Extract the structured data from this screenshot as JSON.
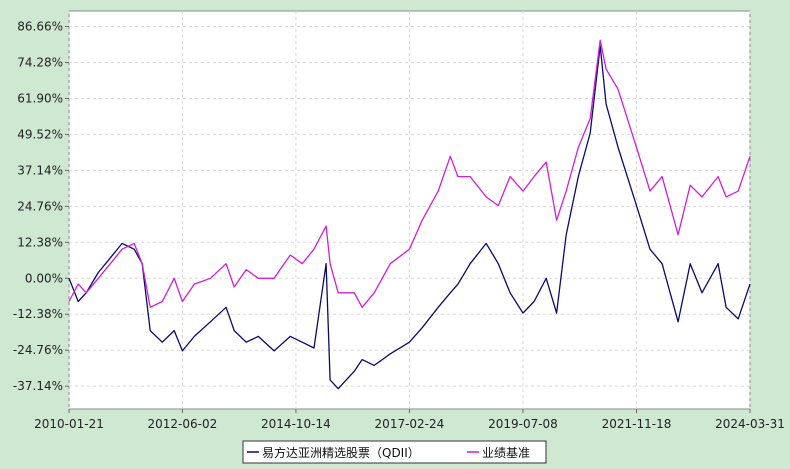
{
  "chart_data": {
    "type": "line",
    "title": "",
    "xlabel": "",
    "ylabel": "",
    "ylim": [
      -45.0,
      92.0
    ],
    "y_ticks": [
      86.66,
      74.28,
      61.9,
      49.52,
      37.14,
      24.76,
      12.38,
      0.0,
      -12.38,
      -24.76,
      -37.14
    ],
    "y_tick_labels": [
      "86.66%",
      "74.28%",
      "61.90%",
      "49.52%",
      "37.14%",
      "24.76%",
      "12.38%",
      "0.00%",
      "-12.38%",
      "-24.76%",
      "-37.14%"
    ],
    "x_start": "2010-01-21",
    "x_end": "2024-03-31",
    "x_ticks": [
      "2010-01-21",
      "2012-06-02",
      "2014-10-14",
      "2017-02-24",
      "2019-07-08",
      "2021-11-18",
      "2024-03-31"
    ],
    "grid": true,
    "legend_position": "bottom-center",
    "series": [
      {
        "name": "易方达亚洲精选股票（QDII）",
        "color": "#0a0a6e",
        "points": [
          [
            "2010-01-21",
            0
          ],
          [
            "2010-04-01",
            -8
          ],
          [
            "2010-06-01",
            -5
          ],
          [
            "2010-09-01",
            2
          ],
          [
            "2010-12-01",
            7
          ],
          [
            "2011-03-01",
            12
          ],
          [
            "2011-06-01",
            10
          ],
          [
            "2011-08-01",
            5
          ],
          [
            "2011-10-01",
            -18
          ],
          [
            "2012-01-01",
            -22
          ],
          [
            "2012-04-01",
            -18
          ],
          [
            "2012-06-02",
            -25
          ],
          [
            "2012-09-01",
            -20
          ],
          [
            "2013-01-01",
            -15
          ],
          [
            "2013-05-01",
            -10
          ],
          [
            "2013-07-01",
            -18
          ],
          [
            "2013-10-01",
            -22
          ],
          [
            "2014-01-01",
            -20
          ],
          [
            "2014-05-01",
            -25
          ],
          [
            "2014-09-01",
            -20
          ],
          [
            "2014-12-01",
            -22
          ],
          [
            "2015-03-01",
            -24
          ],
          [
            "2015-06-01",
            5
          ],
          [
            "2015-07-01",
            -35
          ],
          [
            "2015-09-01",
            -38
          ],
          [
            "2016-01-01",
            -32
          ],
          [
            "2016-03-01",
            -28
          ],
          [
            "2016-06-01",
            -30
          ],
          [
            "2016-10-01",
            -26
          ],
          [
            "2017-02-24",
            -22
          ],
          [
            "2017-06-01",
            -17
          ],
          [
            "2017-10-01",
            -10
          ],
          [
            "2018-01-01",
            -5
          ],
          [
            "2018-03-01",
            -2
          ],
          [
            "2018-06-01",
            5
          ],
          [
            "2018-10-01",
            12
          ],
          [
            "2019-01-01",
            5
          ],
          [
            "2019-04-01",
            -5
          ],
          [
            "2019-07-08",
            -12
          ],
          [
            "2019-10-01",
            -8
          ],
          [
            "2020-01-01",
            0
          ],
          [
            "2020-03-20",
            -12
          ],
          [
            "2020-06-01",
            15
          ],
          [
            "2020-09-01",
            35
          ],
          [
            "2020-12-01",
            50
          ],
          [
            "2021-02-15",
            80
          ],
          [
            "2021-04-01",
            60
          ],
          [
            "2021-07-01",
            45
          ],
          [
            "2021-11-18",
            25
          ],
          [
            "2022-03-01",
            10
          ],
          [
            "2022-06-01",
            5
          ],
          [
            "2022-10-01",
            -15
          ],
          [
            "2023-01-01",
            5
          ],
          [
            "2023-04-01",
            -5
          ],
          [
            "2023-08-01",
            5
          ],
          [
            "2023-10-01",
            -10
          ],
          [
            "2024-01-01",
            -14
          ],
          [
            "2024-03-31",
            -2
          ]
        ]
      },
      {
        "name": "业绩基准",
        "color": "#d11fd8",
        "points": [
          [
            "2010-01-21",
            -8
          ],
          [
            "2010-04-01",
            -2
          ],
          [
            "2010-06-01",
            -5
          ],
          [
            "2010-09-01",
            0
          ],
          [
            "2010-12-01",
            5
          ],
          [
            "2011-03-01",
            10
          ],
          [
            "2011-06-01",
            12
          ],
          [
            "2011-08-01",
            5
          ],
          [
            "2011-10-01",
            -10
          ],
          [
            "2012-01-01",
            -8
          ],
          [
            "2012-04-01",
            0
          ],
          [
            "2012-06-02",
            -8
          ],
          [
            "2012-09-01",
            -2
          ],
          [
            "2013-01-01",
            0
          ],
          [
            "2013-05-01",
            5
          ],
          [
            "2013-07-01",
            -3
          ],
          [
            "2013-10-01",
            3
          ],
          [
            "2014-01-01",
            0
          ],
          [
            "2014-05-01",
            0
          ],
          [
            "2014-09-01",
            8
          ],
          [
            "2014-12-01",
            5
          ],
          [
            "2015-03-01",
            10
          ],
          [
            "2015-06-01",
            18
          ],
          [
            "2015-07-01",
            5
          ],
          [
            "2015-09-01",
            -5
          ],
          [
            "2016-01-01",
            -5
          ],
          [
            "2016-03-01",
            -10
          ],
          [
            "2016-06-01",
            -5
          ],
          [
            "2016-10-01",
            5
          ],
          [
            "2017-02-24",
            10
          ],
          [
            "2017-06-01",
            20
          ],
          [
            "2017-10-01",
            30
          ],
          [
            "2018-01-01",
            42
          ],
          [
            "2018-03-01",
            35
          ],
          [
            "2018-06-01",
            35
          ],
          [
            "2018-10-01",
            28
          ],
          [
            "2019-01-01",
            25
          ],
          [
            "2019-04-01",
            35
          ],
          [
            "2019-07-08",
            30
          ],
          [
            "2019-10-01",
            35
          ],
          [
            "2020-01-01",
            40
          ],
          [
            "2020-03-20",
            20
          ],
          [
            "2020-06-01",
            30
          ],
          [
            "2020-09-01",
            45
          ],
          [
            "2020-12-01",
            55
          ],
          [
            "2021-02-15",
            82
          ],
          [
            "2021-04-01",
            72
          ],
          [
            "2021-07-01",
            65
          ],
          [
            "2021-11-18",
            45
          ],
          [
            "2022-03-01",
            30
          ],
          [
            "2022-06-01",
            35
          ],
          [
            "2022-10-01",
            15
          ],
          [
            "2023-01-01",
            32
          ],
          [
            "2023-04-01",
            28
          ],
          [
            "2023-08-01",
            35
          ],
          [
            "2023-10-01",
            28
          ],
          [
            "2024-01-01",
            30
          ],
          [
            "2024-03-31",
            42
          ]
        ]
      }
    ]
  }
}
